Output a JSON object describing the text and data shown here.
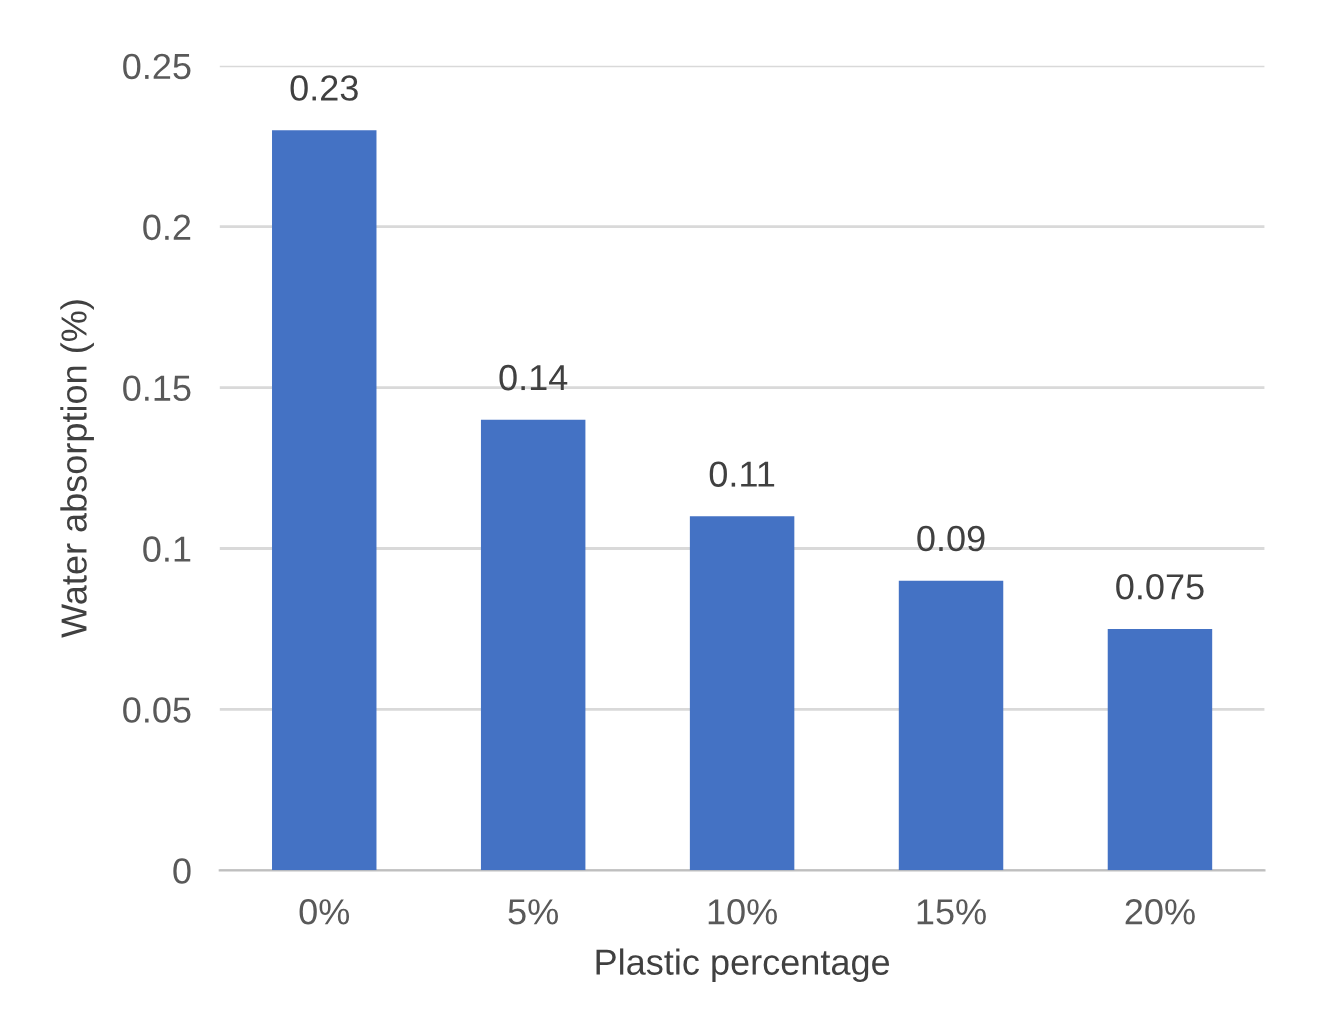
{
  "chart_data": {
    "type": "bar",
    "categories": [
      "0%",
      "5%",
      "10%",
      "15%",
      "20%"
    ],
    "values": [
      0.23,
      0.14,
      0.11,
      0.09,
      0.075
    ],
    "color": "#4472c4",
    "xlabel": "Plastic percentage",
    "ylabel": "Water absorption (%)",
    "ylim": [
      0,
      0.25
    ],
    "yticks": [
      0,
      0.05,
      0.1,
      0.15,
      0.2,
      0.25
    ],
    "grid": "y",
    "data_labels": true
  }
}
